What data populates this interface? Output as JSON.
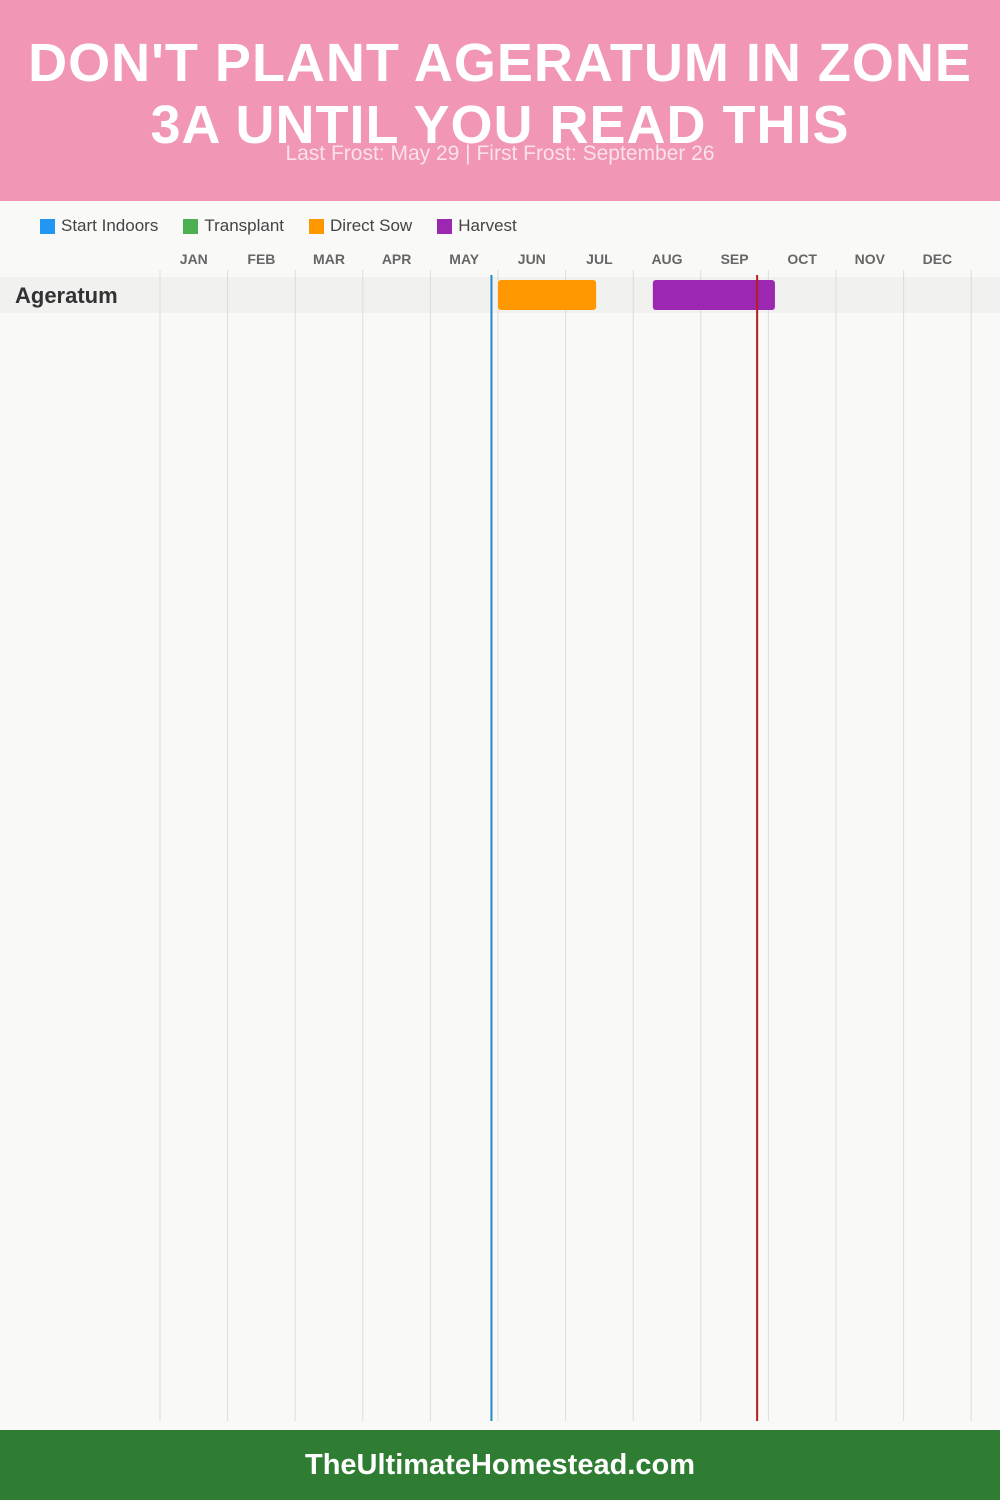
{
  "header": {
    "title": "DON'T PLANT AGERATUM IN ZONE 3A UNTIL YOU READ THIS",
    "subtitle": "Last Frost: May 29 | First Frost: September 26"
  },
  "legend": [
    {
      "label": "Start Indoors",
      "color": "#2196f3"
    },
    {
      "label": "Transplant",
      "color": "#4caf50"
    },
    {
      "label": "Direct Sow",
      "color": "#ff9800"
    },
    {
      "label": "Harvest",
      "color": "#9c27b0"
    }
  ],
  "chart_data": {
    "type": "gantt",
    "months": [
      "JAN",
      "FEB",
      "MAR",
      "APR",
      "MAY",
      "JUN",
      "JUL",
      "AUG",
      "SEP",
      "OCT",
      "NOV",
      "DEC"
    ],
    "rows": [
      {
        "label": "Ageratum",
        "bars": [
          {
            "series": "Direct Sow",
            "start": "Jun 1",
            "end": "Jul 15"
          },
          {
            "series": "Harvest",
            "start": "Aug 10",
            "end": "Oct 4"
          }
        ]
      }
    ],
    "markers": [
      {
        "name": "Last Frost",
        "date": "May 29",
        "color": "#1e88c8"
      },
      {
        "name": "First Frost",
        "date": "Sep 26",
        "color": "#b71c1c"
      }
    ]
  },
  "footer": {
    "site": "TheUltimateHomestead.com"
  }
}
